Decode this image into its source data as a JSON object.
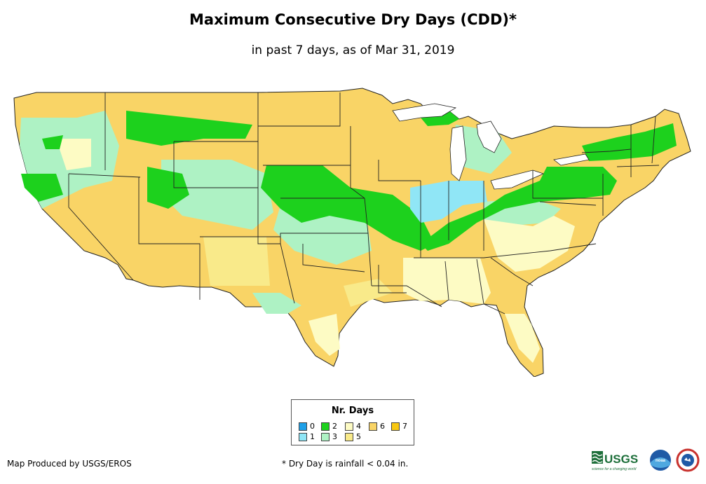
{
  "title": "Maximum Consecutive Dry Days (CDD)*",
  "subtitle": "in past 7 days, as of Mar 31, 2019",
  "legend": {
    "title": "Nr. Days",
    "items": [
      {
        "label": "0",
        "color": "#1ea0e8"
      },
      {
        "label": "1",
        "color": "#90e6f6"
      },
      {
        "label": "2",
        "color": "#1dd11d"
      },
      {
        "label": "3",
        "color": "#aef2c4"
      },
      {
        "label": "4",
        "color": "#fdfbc4"
      },
      {
        "label": "5",
        "color": "#f9ea8a"
      },
      {
        "label": "6",
        "color": "#f9d466"
      },
      {
        "label": "7",
        "color": "#f8c812"
      }
    ]
  },
  "credit": "Map Produced by USGS/EROS",
  "footnote": "* Dry Day is rainfall < 0.04 in.",
  "logos": {
    "usgs_text": "USGS",
    "usgs_tagline": "science for a changing world",
    "noaa_text": "noaa"
  }
}
